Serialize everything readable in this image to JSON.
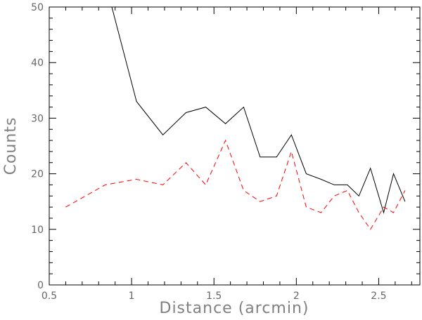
{
  "chart_data": {
    "type": "line",
    "xlabel": "Distance (arcmin)",
    "ylabel": "Counts",
    "xlim": [
      0.5,
      2.75
    ],
    "ylim": [
      0,
      50
    ],
    "xticks": [
      0.5,
      1,
      1.5,
      2,
      2.5
    ],
    "xtick_labels": [
      "0.5",
      "1",
      "1.5",
      "2",
      "2.5"
    ],
    "yticks": [
      0,
      10,
      20,
      30,
      40,
      50
    ],
    "ytick_labels": [
      "0",
      "10",
      "20",
      "30",
      "40",
      "50"
    ],
    "grid": false,
    "series": [
      {
        "style": "solid",
        "color": "#000000",
        "x": [
          0.88,
          1.03,
          1.19,
          1.33,
          1.45,
          1.57,
          1.68,
          1.78,
          1.88,
          1.97,
          2.06,
          2.15,
          2.23,
          2.31,
          2.38,
          2.45,
          2.53,
          2.59,
          2.66
        ],
        "y": [
          50,
          33,
          27,
          31,
          32,
          29,
          32,
          23,
          23,
          27,
          20,
          19,
          18,
          18,
          16,
          21,
          13,
          20,
          15
        ]
      },
      {
        "style": "dashed",
        "color": "#ff0000",
        "x": [
          0.6,
          0.84,
          1.03,
          1.19,
          1.33,
          1.45,
          1.57,
          1.68,
          1.78,
          1.88,
          1.97,
          2.06,
          2.15,
          2.23,
          2.31,
          2.38,
          2.45,
          2.53,
          2.59,
          2.66
        ],
        "y": [
          14,
          18,
          19,
          18,
          22,
          18,
          26,
          17,
          15,
          16,
          24,
          14,
          13,
          16,
          17,
          13,
          10,
          14,
          13,
          17
        ]
      }
    ]
  }
}
